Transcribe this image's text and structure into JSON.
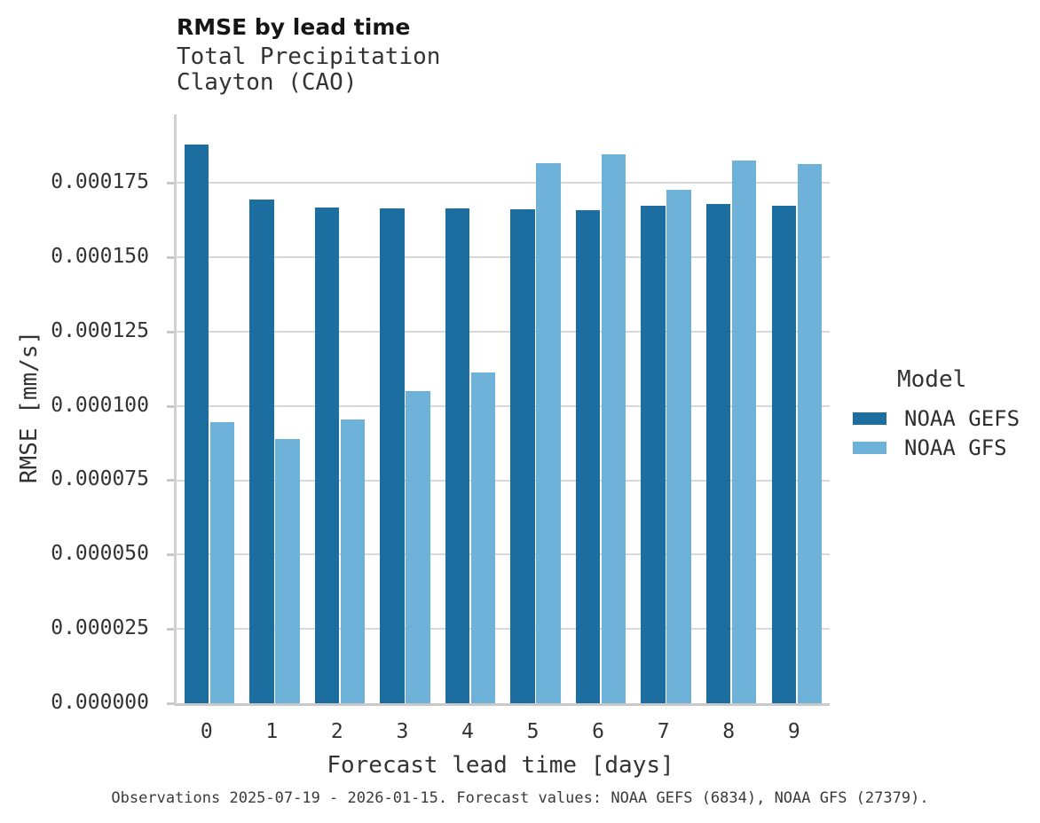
{
  "chart_data": {
    "type": "bar",
    "title": "RMSE by lead time",
    "subtitle": "Total Precipitation\nClayton (CAO)",
    "xlabel": "Forecast lead time [days]",
    "ylabel": "RMSE [mm/s]",
    "categories": [
      "0",
      "1",
      "2",
      "3",
      "4",
      "5",
      "6",
      "7",
      "8",
      "9"
    ],
    "series": [
      {
        "name": "NOAA GEFS",
        "color": "#1b6e9f",
        "values": [
          0.000188,
          0.0001695,
          0.0001667,
          0.0001663,
          0.0001663,
          0.000166,
          0.0001658,
          0.0001674,
          0.0001679,
          0.0001674
        ]
      },
      {
        "name": "NOAA GFS",
        "color": "#6fb2d9",
        "values": [
          9.44e-05,
          8.88e-05,
          9.54e-05,
          0.0001051,
          0.0001112,
          0.0001815,
          0.0001846,
          0.0001726,
          0.0001824,
          0.0001813
        ]
      }
    ],
    "ylim": [
      0,
      0.000198
    ],
    "yticks": [
      0,
      2.5e-05,
      5e-05,
      7.5e-05,
      0.0001,
      0.000125,
      0.00015,
      0.000175
    ],
    "ytick_labels": [
      "0.000000",
      "0.000025",
      "0.000050",
      "0.000075",
      "0.000100",
      "0.000125",
      "0.000150",
      "0.000175"
    ],
    "grid": true,
    "legend_position": "right",
    "legend_title": "Model",
    "caption": "Observations 2025-07-19 - 2026-01-15. Forecast values: NOAA GEFS (6834), NOAA GFS (27379)."
  },
  "legend": {
    "title": "Model",
    "entries": [
      {
        "label": "NOAA GEFS",
        "color": "#1b6e9f"
      },
      {
        "label": "NOAA GFS",
        "color": "#6fb2d9"
      }
    ]
  }
}
